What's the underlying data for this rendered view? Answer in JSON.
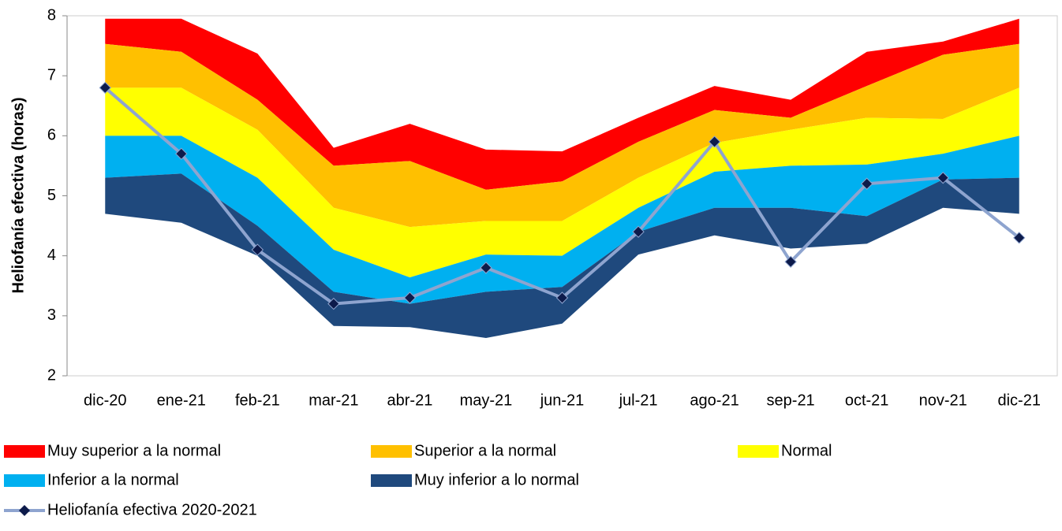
{
  "chart_data": {
    "type": "band-area",
    "y_label": "Heliofanía efectiva (horas)",
    "categories": [
      "dic-20",
      "ene-21",
      "feb-21",
      "mar-21",
      "abr-21",
      "may-21",
      "jun-21",
      "jul-21",
      "ago-21",
      "sep-21",
      "oct-21",
      "nov-21",
      "dic-21"
    ],
    "ylim": [
      2,
      8
    ],
    "yticks": [
      2,
      3,
      4,
      5,
      6,
      7,
      8
    ],
    "series": [
      {
        "name": "Muy superior a la normal",
        "color": "#ff0000",
        "values": [
          7.95,
          7.95,
          7.37,
          5.8,
          6.2,
          5.77,
          5.74,
          6.3,
          6.83,
          6.6,
          7.4,
          7.57,
          7.95
        ]
      },
      {
        "name": "Superior a la normal",
        "color": "#ffc000",
        "values": [
          7.53,
          7.4,
          6.6,
          5.5,
          5.58,
          5.1,
          5.24,
          5.9,
          6.43,
          6.3,
          6.83,
          7.35,
          7.53
        ]
      },
      {
        "name": "Normal",
        "color": "#ffff00",
        "values": [
          6.8,
          6.8,
          6.1,
          4.8,
          4.48,
          4.58,
          4.58,
          5.3,
          5.88,
          6.1,
          6.3,
          6.28,
          6.8
        ]
      },
      {
        "name": "Inferior a la normal",
        "color": "#00b0f0",
        "values": [
          6.0,
          6.0,
          5.3,
          4.1,
          3.64,
          4.02,
          4.0,
          4.8,
          5.4,
          5.5,
          5.52,
          5.7,
          6.0
        ]
      },
      {
        "name": "Muy inferior a lo normal",
        "color": "#1f497d",
        "values": [
          5.3,
          5.37,
          4.5,
          3.4,
          3.2,
          3.4,
          3.48,
          4.4,
          4.8,
          4.8,
          4.66,
          5.27,
          5.3
        ],
        "lower": [
          4.7,
          4.55,
          4.0,
          2.83,
          2.81,
          2.63,
          2.87,
          4.02,
          4.34,
          4.12,
          4.2,
          4.8,
          4.7
        ]
      }
    ],
    "line": {
      "name": "Heliofanía efectiva 2020-2021",
      "color": "#8ea4cf",
      "marker_color": "#0d1b4b",
      "values": [
        6.8,
        5.7,
        4.1,
        3.2,
        3.3,
        3.8,
        3.3,
        4.4,
        5.9,
        3.9,
        5.2,
        5.3,
        4.3
      ]
    }
  }
}
